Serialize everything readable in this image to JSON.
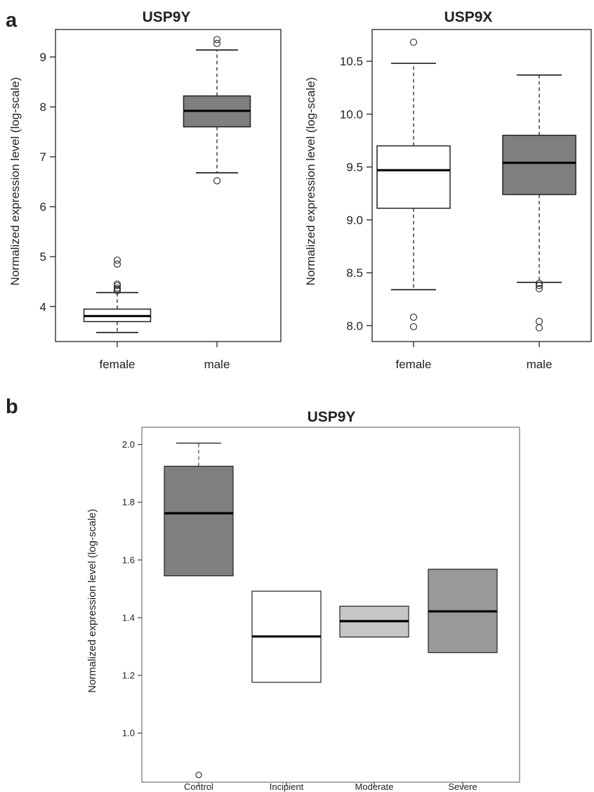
{
  "figure": {
    "panel_a": "a",
    "panel_b": "b"
  },
  "colors": {
    "dark_box": "#7f7f7f",
    "light_box": "#c6c6c6",
    "white_box": "#ffffff",
    "stroke": "#222222"
  },
  "chart_data": [
    {
      "type": "box",
      "title": "USP9Y",
      "ylabel": "Normalized expression level (log-scale)",
      "xlabel": "",
      "ylim": [
        3.3,
        9.55
      ],
      "yticks": [
        4,
        5,
        6,
        7,
        8,
        9
      ],
      "categories": [
        "female",
        "male"
      ],
      "boxes": [
        {
          "category": "female",
          "fill": "#ffffff",
          "whisker_low": 3.48,
          "q1": 3.7,
          "median": 3.81,
          "q3": 3.95,
          "whisker_high": 4.28,
          "whisker_dashed": true,
          "outliers": [
            4.32,
            4.34,
            4.37,
            4.42,
            4.45,
            4.85,
            4.93
          ]
        },
        {
          "category": "male",
          "fill": "#7f7f7f",
          "whisker_low": 6.68,
          "q1": 7.6,
          "median": 7.92,
          "q3": 8.22,
          "whisker_high": 9.14,
          "whisker_dashed": true,
          "outliers": [
            6.52,
            9.27,
            9.35
          ]
        }
      ]
    },
    {
      "type": "box",
      "title": "USP9X",
      "ylabel": "Normalized expression level (log-scale)",
      "xlabel": "",
      "ylim": [
        7.85,
        10.8
      ],
      "yticks": [
        "8.0",
        "8.5",
        "9.0",
        "9.5",
        "10.0",
        "10.5"
      ],
      "categories": [
        "female",
        "male"
      ],
      "boxes": [
        {
          "category": "female",
          "fill": "#ffffff",
          "whisker_low": 8.34,
          "q1": 9.11,
          "median": 9.47,
          "q3": 9.7,
          "whisker_high": 10.48,
          "whisker_dashed": true,
          "outliers": [
            7.99,
            8.08,
            10.68
          ]
        },
        {
          "category": "male",
          "fill": "#7f7f7f",
          "whisker_low": 8.41,
          "q1": 9.24,
          "median": 9.54,
          "q3": 9.8,
          "whisker_high": 10.37,
          "whisker_dashed": true,
          "outliers": [
            7.98,
            8.04,
            8.35,
            8.38,
            8.4
          ]
        }
      ]
    },
    {
      "type": "box",
      "title": "USP9Y",
      "ylabel": "Normalized expression level (log-scale)",
      "xlabel": "",
      "ylim": [
        0.83,
        2.06
      ],
      "yticks": [
        "1.0",
        "1.2",
        "1.4",
        "1.6",
        "1.8",
        "2.0"
      ],
      "categories": [
        "Control",
        "Incipient",
        "Moderate",
        "Severe"
      ],
      "boxes": [
        {
          "category": "Control",
          "fill": "#7f7f7f",
          "whisker_low": null,
          "q1": 1.545,
          "median": 1.762,
          "q3": 1.925,
          "whisker_high": 2.005,
          "whisker_dashed": true,
          "outliers": [
            0.855
          ]
        },
        {
          "category": "Incipient",
          "fill": "#ffffff",
          "whisker_low": null,
          "q1": 1.176,
          "median": 1.335,
          "q3": 1.492,
          "whisker_high": null,
          "whisker_dashed": true,
          "outliers": []
        },
        {
          "category": "Moderate",
          "fill": "#c6c6c6",
          "whisker_low": null,
          "q1": 1.333,
          "median": 1.388,
          "q3": 1.44,
          "whisker_high": null,
          "whisker_dashed": true,
          "outliers": []
        },
        {
          "category": "Severe",
          "fill": "#999999",
          "whisker_low": null,
          "q1": 1.279,
          "median": 1.422,
          "q3": 1.568,
          "whisker_high": null,
          "whisker_dashed": true,
          "outliers": []
        }
      ]
    }
  ]
}
